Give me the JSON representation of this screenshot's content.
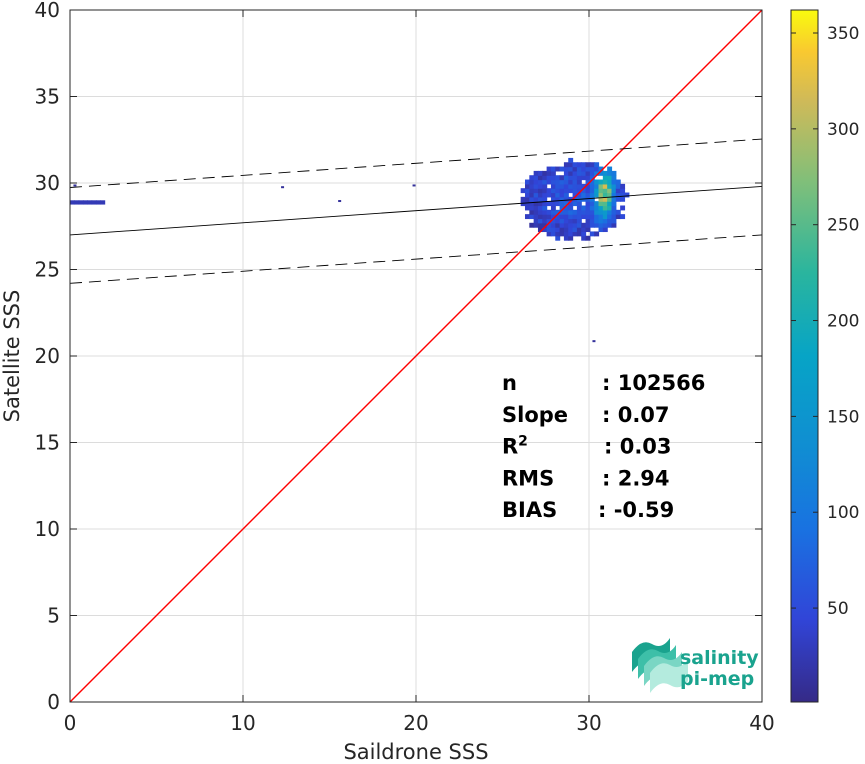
{
  "chart_data": {
    "type": "heatmap",
    "title": "",
    "xlabel": "Saildrone SSS",
    "ylabel": "Satellite SSS",
    "xlim": [
      0,
      40
    ],
    "ylim": [
      0,
      40
    ],
    "x_ticks": [
      0,
      10,
      20,
      30,
      40
    ],
    "y_ticks": [
      0,
      5,
      10,
      15,
      20,
      25,
      30,
      35,
      40
    ],
    "grid": true,
    "colorbar": {
      "range": [
        1,
        362
      ],
      "ticks": [
        50,
        100,
        150,
        200,
        250,
        300,
        350
      ],
      "colormap": "parula"
    },
    "density_regions": [
      {
        "x_range": [
          23.8,
          32.3
        ],
        "y_range": [
          24.2,
          31.6
        ],
        "center": [
          30.8,
          29.3
        ],
        "peak_count": 360
      },
      {
        "x_range": [
          0.0,
          2.0
        ],
        "y_range": [
          28.8,
          29.0
        ],
        "center": [
          1.0,
          28.9
        ],
        "peak_count": 25
      }
    ],
    "scattered_points": [
      [
        12.2,
        29.7
      ],
      [
        15.5,
        28.9
      ],
      [
        19.8,
        29.8
      ],
      [
        30.2,
        20.8
      ],
      [
        0.2,
        29.8
      ]
    ],
    "lines": [
      {
        "kind": "one-to-one",
        "slope": 1.0,
        "intercept": 0.0,
        "color": "#ff0000",
        "style": "solid"
      },
      {
        "kind": "regression",
        "slope": 0.07,
        "intercept": 27.0,
        "color": "#000000",
        "style": "solid"
      },
      {
        "kind": "upper-bound",
        "slope": 0.07,
        "intercept": 29.74,
        "color": "#000000",
        "style": "dashed"
      },
      {
        "kind": "lower-bound",
        "slope": 0.07,
        "intercept": 24.2,
        "color": "#000000",
        "style": "dashed"
      }
    ],
    "stats": [
      {
        "key": "n",
        "sup": "",
        "value": ": 102566"
      },
      {
        "key": "Slope",
        "sup": "",
        "value": ": 0.07"
      },
      {
        "key": "R",
        "sup": "2",
        "value": ": 0.03"
      },
      {
        "key": "RMS",
        "sup": "",
        "value": ": 2.94"
      },
      {
        "key": "BIAS",
        "sup": "",
        "value": ": -0.59"
      }
    ]
  },
  "logo": {
    "line1": "salinity",
    "line2": "pi-mep",
    "colors": [
      "#1aa38e",
      "#3dbfa8",
      "#7ad6c4",
      "#b4ebde"
    ]
  }
}
